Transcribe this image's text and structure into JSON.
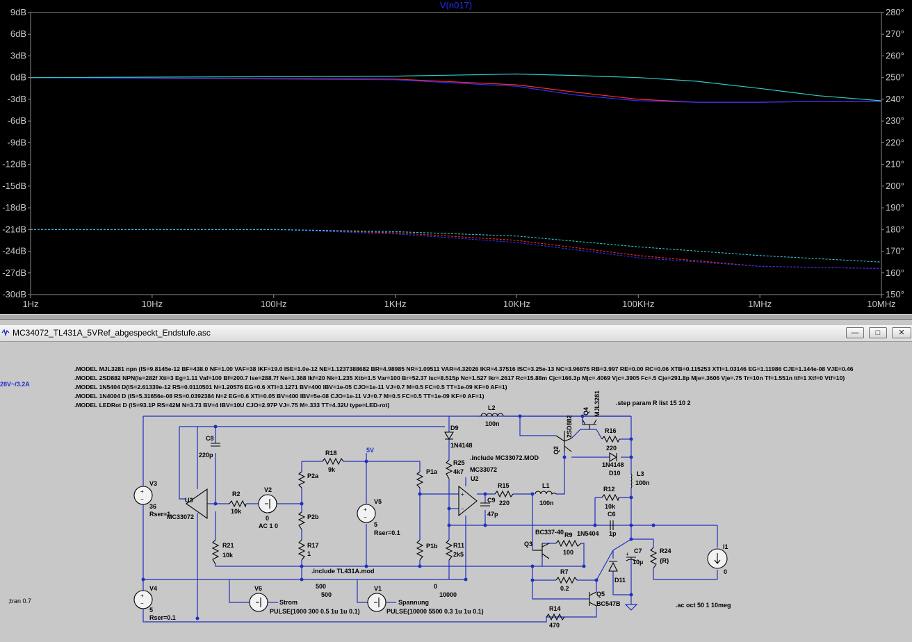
{
  "plot": {
    "trace_name": "V(n017)",
    "chart_data": {
      "type": "line",
      "x_scale": "log",
      "x_range": [
        "1Hz",
        "10MHz"
      ],
      "x_ticks": [
        "1Hz",
        "10Hz",
        "100Hz",
        "1KHz",
        "10KHz",
        "100KHz",
        "1MHz",
        "10MHz"
      ],
      "y_left_ticks": [
        "9dB",
        "6dB",
        "3dB",
        "0dB",
        "-3dB",
        "-6dB",
        "-9dB",
        "-12dB",
        "-15dB",
        "-18dB",
        "-21dB",
        "-24dB",
        "-27dB",
        "-30dB"
      ],
      "y_left_range_db": [
        -30,
        9
      ],
      "y_right_ticks": [
        "280°",
        "270°",
        "260°",
        "250°",
        "240°",
        "230°",
        "220°",
        "210°",
        "200°",
        "190°",
        "180°",
        "170°",
        "160°",
        "150°"
      ],
      "y_right_range_deg": [
        150,
        280
      ],
      "series": [
        {
          "color": "#ff2a2a",
          "magnitude_db": [
            [
              1,
              0
            ],
            [
              1000,
              -0.2
            ],
            [
              10000,
              -1.0
            ],
            [
              30000,
              -2.0
            ],
            [
              100000,
              -3.0
            ],
            [
              300000,
              -3.4
            ],
            [
              1000000,
              -3.4
            ],
            [
              3000000,
              -3.3
            ],
            [
              10000000,
              -3.3
            ]
          ],
          "phase_deg": [
            [
              1,
              180
            ],
            [
              100,
              180
            ],
            [
              1000,
              178.5
            ],
            [
              10000,
              175
            ],
            [
              100000,
              168
            ],
            [
              1000000,
              163
            ],
            [
              10000000,
              162
            ]
          ]
        },
        {
          "color": "#3030ff",
          "magnitude_db": [
            [
              1,
              0
            ],
            [
              1000,
              -0.3
            ],
            [
              10000,
              -1.2
            ],
            [
              30000,
              -2.4
            ],
            [
              100000,
              -3.2
            ],
            [
              300000,
              -3.4
            ],
            [
              1000000,
              -3.4
            ],
            [
              3000000,
              -3.3
            ],
            [
              10000000,
              -3.3
            ]
          ],
          "phase_deg": [
            [
              1,
              180
            ],
            [
              100,
              180
            ],
            [
              1000,
              178
            ],
            [
              10000,
              174
            ],
            [
              100000,
              167
            ],
            [
              1000000,
              163
            ],
            [
              10000000,
              162
            ]
          ]
        },
        {
          "color": "#30c8c8",
          "magnitude_db": [
            [
              1,
              0
            ],
            [
              1000,
              0.2
            ],
            [
              10000,
              0.5
            ],
            [
              30000,
              0.3
            ],
            [
              100000,
              0.0
            ],
            [
              300000,
              -0.5
            ],
            [
              1000000,
              -1.5
            ],
            [
              3000000,
              -2.5
            ],
            [
              10000000,
              -3.2
            ]
          ],
          "phase_deg": [
            [
              1,
              180
            ],
            [
              100,
              180
            ],
            [
              1000,
              179
            ],
            [
              10000,
              177
            ],
            [
              100000,
              172
            ],
            [
              1000000,
              168
            ],
            [
              10000000,
              165
            ]
          ]
        }
      ]
    }
  },
  "window": {
    "title": "MC34072_TL431A_5VRef_abgespeckt_Endstufe.asc",
    "icon": "ltspice-schematic-icon",
    "buttons": {
      "minimize": "—",
      "maximize": "□",
      "close": "✕"
    }
  },
  "schematic": {
    "models": [
      ".MODEL MJL3281 npn (IS=9.8145e-12 BF=438.0 NF=1.00 VAF=38 IKF=19.0 ISE=1.0e-12 NE=1.1237388682 BR=4.98985 NR=1.09511 VAR=4.32026 IKR=4.37516 ISC=3.25e-13 NC=3.96875 RB=3.997 RE=0.00 RC=0.06 XTB=0.115253 XTI=1.03146 EG=1.11986 CJE=1.144e-08 VJE=0.46",
      ".MODEL 2SD882 NPN(Is=282f Xti=3 Eg=1.11 Vaf=100 Bf=200.7 Ise=288.7f Ne=1.368 Ikf=20 Nk=1.235 Xtb=1.5 Var=100 Br=52.37 Isc=8.515p Nc=1.527 Ikr=.2617 Rc=15.88m Cjc=166.3p Mjc=.4069 Vjc=.3905 Fc=.5 Cje=291.8p Mje=.3606 Vje=.75 Tr=10n Tf=1.551n Itf=1 Xtf=0 Vtf=10)",
      ".MODEL 1N5404 D(IS=2.61339e-12 RS=0.0110501 N=1.20576 EG=0.6 XTI=3.1271 BV=400 IBV=1e-05 CJO=1e-11 VJ=0.7 M=0.5 FC=0.5 TT=1e-09 KF=0 AF=1)",
      ".MODEL 1N4004 D (IS=5.31656e-08 RS=0.0392384 N=2 EG=0.6 XTI=0.05 BV=400 IBV=5e-08 CJO=1e-11 VJ=0.7 M=0.5 FC=0.5 TT=1e-09 KF=0 AF=1)",
      ".MODEL LEDRot D (IS=93.1P RS=42M N=3.73 BV=4 IBV=10U CJO=2.97P VJ=.75 M=.333 TT=4.32U type=LED-rot)"
    ],
    "left_note": "28V~/3.2A",
    "step_directive": ".step param R list 15 10 2",
    "include_mc": ".include MC33072.MOD",
    "include_tl": ".include TL431A.mod",
    "ac_directive": ".ac oct 50 1 10meg",
    "tran_directive": ";tran 0.7",
    "net_5v": "5V",
    "labels": {
      "v3": "V3",
      "v3_val": "36",
      "v3_rser": "Rser=1",
      "v4": "V4",
      "v4_val": "5",
      "v4_rser": "Rser=0.1",
      "u3": "U3",
      "u3_model": "MC33072",
      "c8": "C8",
      "c8_val": "220p",
      "r2": "R2",
      "r2_val": "10k",
      "v2": "V2",
      "v2_val": "0",
      "v2_ac": "AC 1 0",
      "r18": "R18",
      "r18_val": "9k",
      "p2a": "P2a",
      "p2b": "P2b",
      "r17": "R17",
      "r17_val": "1",
      "v5": "V5",
      "v5_val": "5",
      "v5_rser": "Rser=0.1",
      "p1a": "P1a",
      "p1b": "P1b",
      "r21": "R21",
      "r21_val": "10k",
      "d9": "D9",
      "d9_model": "1N4148",
      "r25": "R25",
      "r25_val": "4k7",
      "u2": "U2",
      "u2_model": "MC33072",
      "r11": "R11",
      "r11_val": "2k5",
      "r15": "R15",
      "r15_val": "220",
      "c9": "C9",
      "c9_val": "47p",
      "l1": "L1",
      "l1_val": "100n",
      "l2": "L2",
      "l2_val": "100n",
      "q2": "Q2",
      "q2_model": "2SD882",
      "q4": "Q4",
      "q4_model": "MJL3281",
      "r16": "R16",
      "r16_val": "220",
      "d10_model": "1N4148",
      "d10": "D10",
      "l3": "L3",
      "l3_val": "100n",
      "r12": "R12",
      "r12_val": "10k",
      "c6": "C6",
      "c6_val": "1p",
      "d_1n5404": "1N5404",
      "q3_model": "BC337-40",
      "q3": "Q3",
      "r9": "R9",
      "r9_val": "100",
      "r7": "R7",
      "r7_val": "0.2",
      "c7": "C7",
      "c7_val": "10µ",
      "d11": "D11",
      "r24": "R24",
      "r24_val": "{R}",
      "i1": "I1",
      "i1_val": "0",
      "q5": "Q5",
      "q5_model": "BC547B",
      "r14": "R14",
      "r14_val": "470",
      "v6": "V6",
      "v6_net": "Strom",
      "v6_pulse": "PULSE(1000 300 0.5 1u 1u 0.1)",
      "v1": "V1",
      "v1_net": "Spannung",
      "v1_pulse": "PULSE(10000 5500 0.3 1u 1u 0.1)",
      "v6_a": "500",
      "v6_b": "500",
      "v1_a": "0",
      "v1_b": "10000"
    }
  }
}
